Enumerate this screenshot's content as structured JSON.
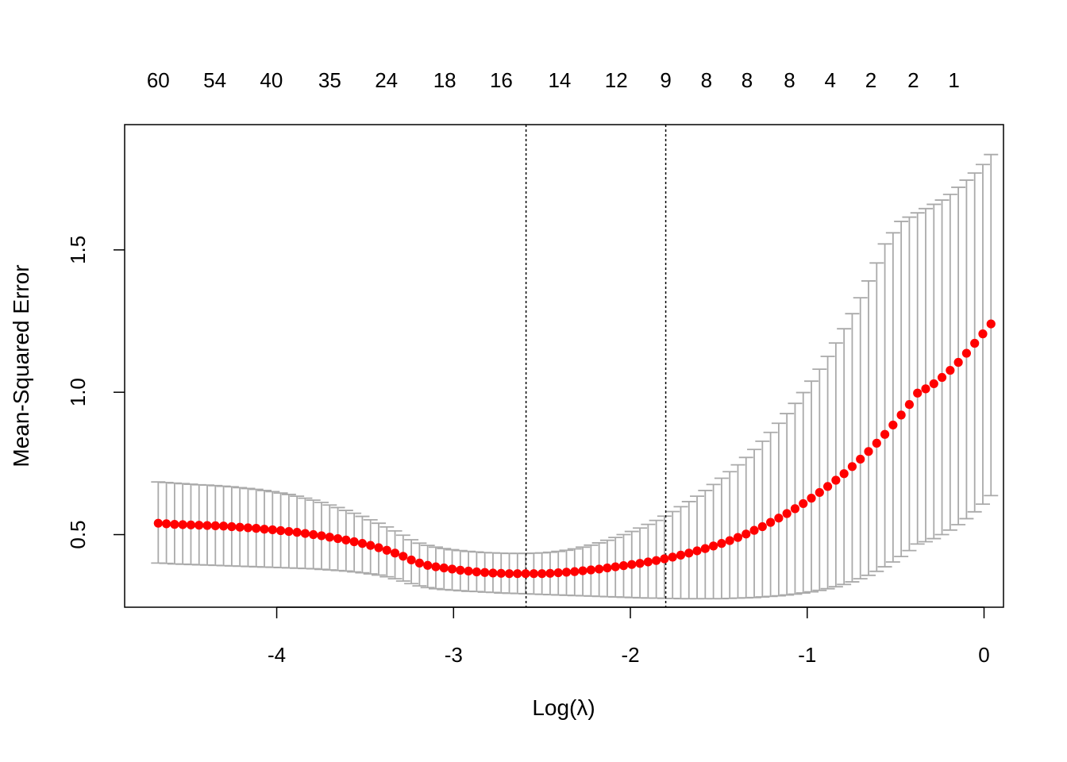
{
  "chart_data": {
    "type": "scatter",
    "title": "",
    "xlabel": "Log(λ)",
    "ylabel": "Mean-Squared Error",
    "xlim": [
      -4.86,
      0.11
    ],
    "ylim": [
      0.245,
      1.94
    ],
    "x_ticks": [
      -4,
      -3,
      -2,
      -1,
      0
    ],
    "y_ticks": [
      0.5,
      1.0,
      1.5
    ],
    "x_tick_labels": [
      "-4",
      "-3",
      "-2",
      "-1",
      "0"
    ],
    "y_tick_labels": [
      "0.5",
      "1.0",
      "1.5"
    ],
    "top_axis": {
      "positions": [
        -4.67,
        -4.35,
        -4.03,
        -3.7,
        -3.38,
        -3.05,
        -2.73,
        -2.4,
        -2.08,
        -1.8,
        -1.57,
        -1.34,
        -1.1,
        -0.87,
        -0.64,
        -0.4,
        -0.17
      ],
      "labels": [
        "60",
        "54",
        "40",
        "35",
        "24",
        "18",
        "16",
        "14",
        "12",
        "9",
        "8",
        "8",
        "8",
        "4",
        "2",
        "2",
        "1"
      ]
    },
    "vlines": [
      -2.59,
      -1.8
    ],
    "grid": false,
    "legend": "none",
    "colors": {
      "points": "#ff0000",
      "error_bars": "#aaaaaa",
      "vlines": "#000000",
      "frame": "#000000"
    },
    "series": [
      {
        "x_start": -4.67,
        "x_step": 0.04617,
        "y": [
          0.54,
          0.538,
          0.536,
          0.535,
          0.534,
          0.533,
          0.532,
          0.531,
          0.53,
          0.528,
          0.526,
          0.524,
          0.522,
          0.519,
          0.517,
          0.514,
          0.511,
          0.508,
          0.504,
          0.5,
          0.496,
          0.491,
          0.486,
          0.481,
          0.475,
          0.469,
          0.462,
          0.454,
          0.445,
          0.435,
          0.424,
          0.411,
          0.4,
          0.392,
          0.387,
          0.383,
          0.379,
          0.375,
          0.372,
          0.369,
          0.367,
          0.365,
          0.364,
          0.363,
          0.363,
          0.363,
          0.363,
          0.363,
          0.364,
          0.366,
          0.368,
          0.37,
          0.373,
          0.376,
          0.379,
          0.383,
          0.387,
          0.391,
          0.395,
          0.399,
          0.404,
          0.409,
          0.415,
          0.421,
          0.428,
          0.435,
          0.443,
          0.451,
          0.46,
          0.469,
          0.479,
          0.49,
          0.502,
          0.515,
          0.528,
          0.543,
          0.558,
          0.574,
          0.591,
          0.609,
          0.628,
          0.648,
          0.669,
          0.691,
          0.714,
          0.739,
          0.765,
          0.792,
          0.821,
          0.852,
          0.885,
          0.92,
          0.957,
          0.997,
          1.012,
          1.03,
          1.052,
          1.077,
          1.105,
          1.137,
          1.172,
          1.205,
          1.24
        ],
        "y_lower": [
          0.4,
          0.399,
          0.397,
          0.396,
          0.395,
          0.394,
          0.393,
          0.392,
          0.391,
          0.39,
          0.389,
          0.388,
          0.387,
          0.386,
          0.385,
          0.384,
          0.383,
          0.382,
          0.381,
          0.38,
          0.378,
          0.376,
          0.374,
          0.372,
          0.369,
          0.366,
          0.362,
          0.358,
          0.352,
          0.345,
          0.337,
          0.328,
          0.32,
          0.314,
          0.31,
          0.307,
          0.305,
          0.303,
          0.301,
          0.3,
          0.298,
          0.297,
          0.295,
          0.294,
          0.293,
          0.292,
          0.291,
          0.29,
          0.289,
          0.288,
          0.287,
          0.286,
          0.285,
          0.284,
          0.283,
          0.282,
          0.281,
          0.28,
          0.279,
          0.278,
          0.277,
          0.277,
          0.276,
          0.276,
          0.275,
          0.275,
          0.275,
          0.275,
          0.275,
          0.275,
          0.276,
          0.277,
          0.278,
          0.279,
          0.281,
          0.283,
          0.285,
          0.288,
          0.291,
          0.295,
          0.299,
          0.304,
          0.31,
          0.317,
          0.325,
          0.334,
          0.345,
          0.357,
          0.371,
          0.387,
          0.404,
          0.423,
          0.444,
          0.467,
          0.475,
          0.486,
          0.5,
          0.516,
          0.535,
          0.556,
          0.58,
          0.607,
          0.637
        ],
        "y_upper": [
          0.685,
          0.683,
          0.681,
          0.679,
          0.677,
          0.675,
          0.674,
          0.672,
          0.67,
          0.668,
          0.665,
          0.662,
          0.659,
          0.655,
          0.651,
          0.646,
          0.641,
          0.635,
          0.628,
          0.621,
          0.613,
          0.604,
          0.595,
          0.585,
          0.575,
          0.564,
          0.552,
          0.54,
          0.527,
          0.513,
          0.498,
          0.482,
          0.47,
          0.462,
          0.456,
          0.451,
          0.447,
          0.444,
          0.441,
          0.439,
          0.437,
          0.436,
          0.435,
          0.434,
          0.434,
          0.434,
          0.435,
          0.436,
          0.438,
          0.441,
          0.445,
          0.45,
          0.456,
          0.463,
          0.471,
          0.48,
          0.49,
          0.5,
          0.511,
          0.523,
          0.536,
          0.55,
          0.565,
          0.581,
          0.598,
          0.616,
          0.635,
          0.655,
          0.676,
          0.698,
          0.721,
          0.745,
          0.771,
          0.799,
          0.828,
          0.859,
          0.891,
          0.925,
          0.961,
          0.999,
          1.039,
          1.081,
          1.126,
          1.173,
          1.223,
          1.276,
          1.332,
          1.391,
          1.454,
          1.521,
          1.56,
          1.6,
          1.615,
          1.63,
          1.645,
          1.66,
          1.675,
          1.695,
          1.72,
          1.745,
          1.77,
          1.8,
          1.835
        ]
      }
    ]
  }
}
